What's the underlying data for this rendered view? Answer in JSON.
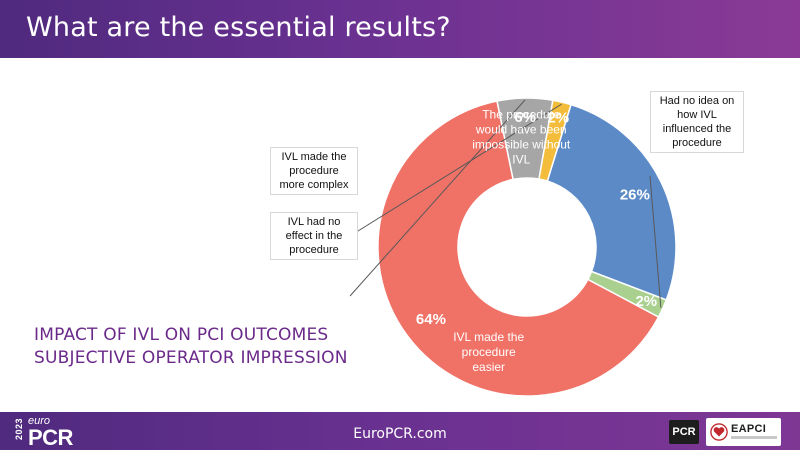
{
  "slide": {
    "title": "What are the essential results?",
    "impact_line1": "IMPACT OF IVL ON PCI OUTCOMES",
    "impact_line2": "SUBJECTIVE OPERATOR IMPRESSION"
  },
  "footer": {
    "url": "EuroPCR.com",
    "brand_year": "2023",
    "brand_euro": "euro",
    "brand_pcr": "PCR",
    "pcr_badge": "PCR",
    "eapci_label": "EAPCI"
  },
  "colors": {
    "header": "#5e2d86",
    "impact_text": "#6b2a8a"
  },
  "chart_data": {
    "type": "pie",
    "donut": true,
    "slices": [
      {
        "label": "IVL made the procedure easier",
        "label_lines": [
          "IVL made the",
          "procedure",
          "easier"
        ],
        "value": 64,
        "value_label": "64%",
        "color": "#f07166",
        "callout": false
      },
      {
        "label": "IVL had no effect in the procedure",
        "label_lines": [
          "IVL had no",
          "effect in the",
          "procedure"
        ],
        "value": 6,
        "value_label": "6%",
        "color": "#a6a6a6",
        "callout": true
      },
      {
        "label": "IVL made the procedure more complex",
        "label_lines": [
          "IVL made the",
          "procedure",
          "more complex"
        ],
        "value": 2,
        "value_label": "2%",
        "color": "#f3bc3a",
        "callout": true
      },
      {
        "label": "The procedure would have been impossible without IVL",
        "label_lines": [
          "The procedure",
          "would have been",
          "impossible without",
          "IVL"
        ],
        "value": 26,
        "value_label": "26%",
        "color": "#5b8ac7",
        "callout": false
      },
      {
        "label": "Had no idea on how IVL influenced the procedure",
        "label_lines": [
          "Had no idea on",
          "how IVL",
          "influenced the",
          "procedure"
        ],
        "value": 2,
        "value_label": "2%",
        "color": "#a9d08e",
        "callout": true
      }
    ]
  }
}
